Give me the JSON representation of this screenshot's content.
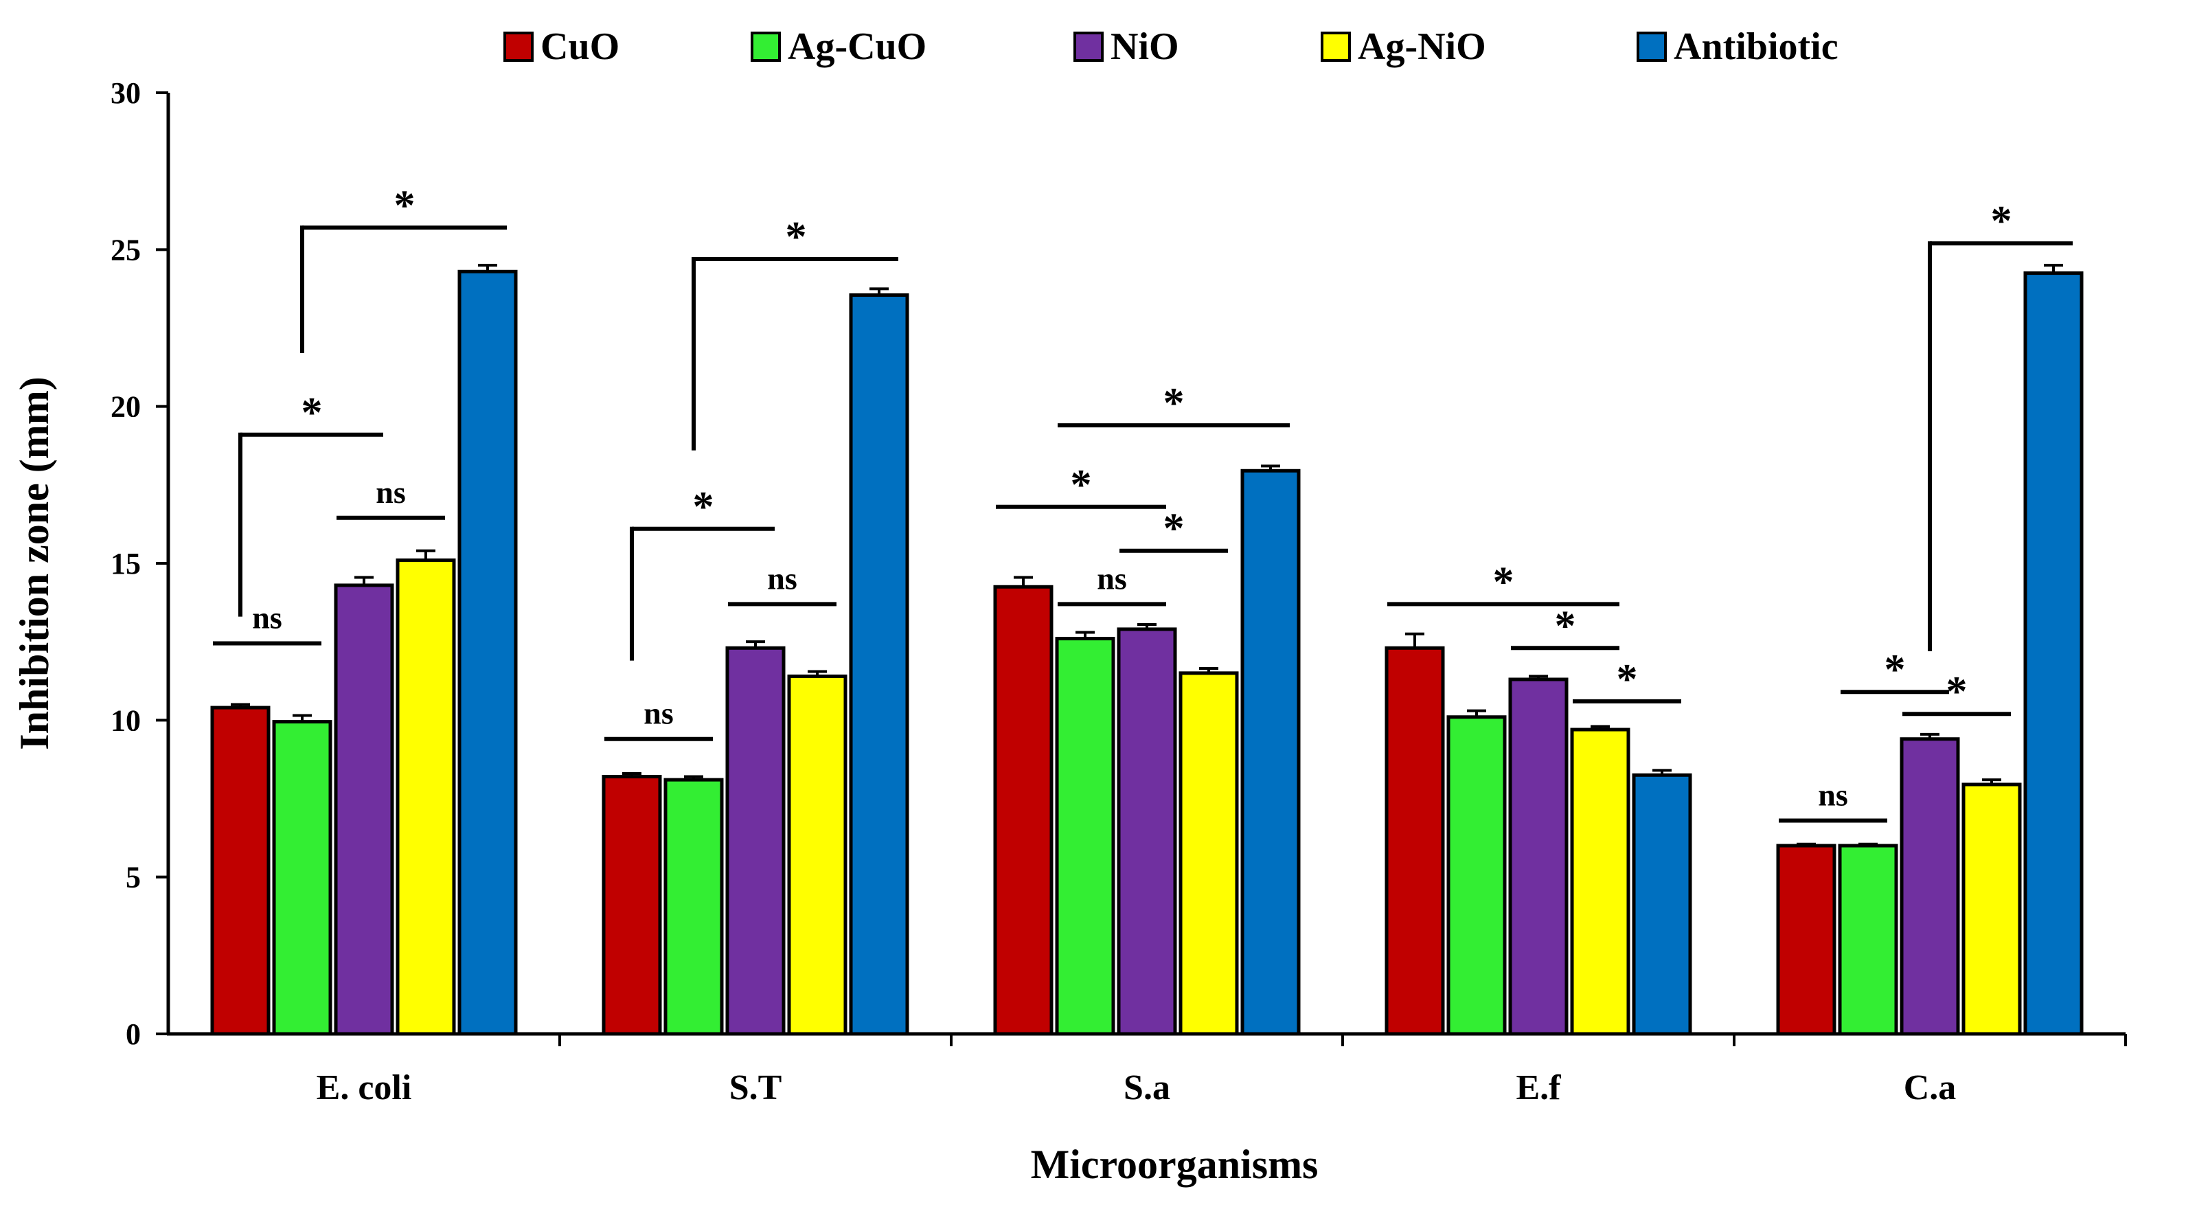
{
  "chart_data": {
    "type": "bar",
    "title": "",
    "xlabel": "Microorganisms",
    "ylabel": "Inhibition zone (mm)",
    "ylim": [
      0,
      30
    ],
    "yticks": [
      "0",
      "5",
      "10",
      "15",
      "20",
      "25",
      "30"
    ],
    "categories": [
      "E. coli",
      "S.T",
      "S.a",
      "E.f",
      "C.a"
    ],
    "legend_position": "top",
    "series": [
      {
        "name": "CuO",
        "color": "#C00000",
        "values": [
          10.4,
          8.2,
          14.25,
          12.3,
          6.0
        ],
        "errors": [
          0.1,
          0.1,
          0.3,
          0.45,
          0.05
        ]
      },
      {
        "name": "Ag-CuO",
        "color": "#33EE33",
        "values": [
          9.95,
          8.1,
          12.6,
          10.1,
          6.0
        ],
        "errors": [
          0.2,
          0.1,
          0.2,
          0.2,
          0.05
        ]
      },
      {
        "name": "NiO",
        "color": "#7030A0",
        "values": [
          14.3,
          12.3,
          12.9,
          11.3,
          9.4
        ],
        "errors": [
          0.25,
          0.2,
          0.15,
          0.1,
          0.15
        ]
      },
      {
        "name": "Ag-NiO",
        "color": "#FFFF00",
        "values": [
          15.1,
          11.4,
          11.5,
          9.7,
          7.95
        ],
        "errors": [
          0.3,
          0.15,
          0.15,
          0.1,
          0.15
        ]
      },
      {
        "name": "Antibiotic",
        "color": "#0070C0",
        "values": [
          24.3,
          23.55,
          17.95,
          8.25,
          24.25
        ],
        "errors": [
          0.2,
          0.2,
          0.15,
          0.15,
          0.25
        ]
      }
    ],
    "annotations": [
      {
        "cat": 0,
        "bars": [
          0,
          1
        ],
        "label": "ns",
        "level": 12.45,
        "type": "line"
      },
      {
        "cat": 0,
        "bars": [
          2,
          3
        ],
        "label": "ns",
        "level": 16.45,
        "type": "line"
      },
      {
        "cat": 0,
        "bars": [
          0,
          2
        ],
        "label": "*",
        "level": 19.1,
        "type": "bracket",
        "left_drop_to": 13.3
      },
      {
        "cat": 0,
        "bars": [
          1,
          4
        ],
        "label": "*",
        "level": 25.7,
        "type": "bracket",
        "left_drop_to": 21.7
      },
      {
        "cat": 1,
        "bars": [
          0,
          1
        ],
        "label": "ns",
        "level": 9.4,
        "type": "line"
      },
      {
        "cat": 1,
        "bars": [
          2,
          3
        ],
        "label": "ns",
        "level": 13.7,
        "type": "line"
      },
      {
        "cat": 1,
        "bars": [
          0,
          2
        ],
        "label": "*",
        "level": 16.1,
        "type": "bracket",
        "left_drop_to": 11.9
      },
      {
        "cat": 1,
        "bars": [
          1,
          4
        ],
        "label": "*",
        "level": 24.7,
        "type": "bracket",
        "left_drop_to": 18.6
      },
      {
        "cat": 2,
        "bars": [
          0,
          2
        ],
        "label": "*",
        "level": 16.8,
        "type": "line"
      },
      {
        "cat": 2,
        "bars": [
          1,
          2
        ],
        "label": "ns",
        "level": 13.7,
        "type": "line"
      },
      {
        "cat": 2,
        "bars": [
          2,
          3
        ],
        "label": "*",
        "level": 15.4,
        "type": "line"
      },
      {
        "cat": 2,
        "bars": [
          1,
          4
        ],
        "label": "*",
        "level": 19.4,
        "type": "line"
      },
      {
        "cat": 3,
        "bars": [
          0,
          3
        ],
        "label": "*",
        "level": 13.7,
        "type": "line"
      },
      {
        "cat": 3,
        "bars": [
          2,
          3
        ],
        "label": "*",
        "level": 12.3,
        "type": "line"
      },
      {
        "cat": 3,
        "bars": [
          3,
          4
        ],
        "label": "*",
        "level": 10.6,
        "type": "line"
      },
      {
        "cat": 4,
        "bars": [
          0,
          1
        ],
        "label": "ns",
        "level": 6.8,
        "type": "line"
      },
      {
        "cat": 4,
        "bars": [
          1,
          2
        ],
        "label": "*",
        "level": 10.9,
        "type": "line"
      },
      {
        "cat": 4,
        "bars": [
          2,
          3
        ],
        "label": "*",
        "level": 10.2,
        "type": "line"
      },
      {
        "cat": 4,
        "bars": [
          2,
          4
        ],
        "label": "*",
        "level": 25.2,
        "type": "bracket",
        "left_drop_to": 12.2
      }
    ]
  }
}
